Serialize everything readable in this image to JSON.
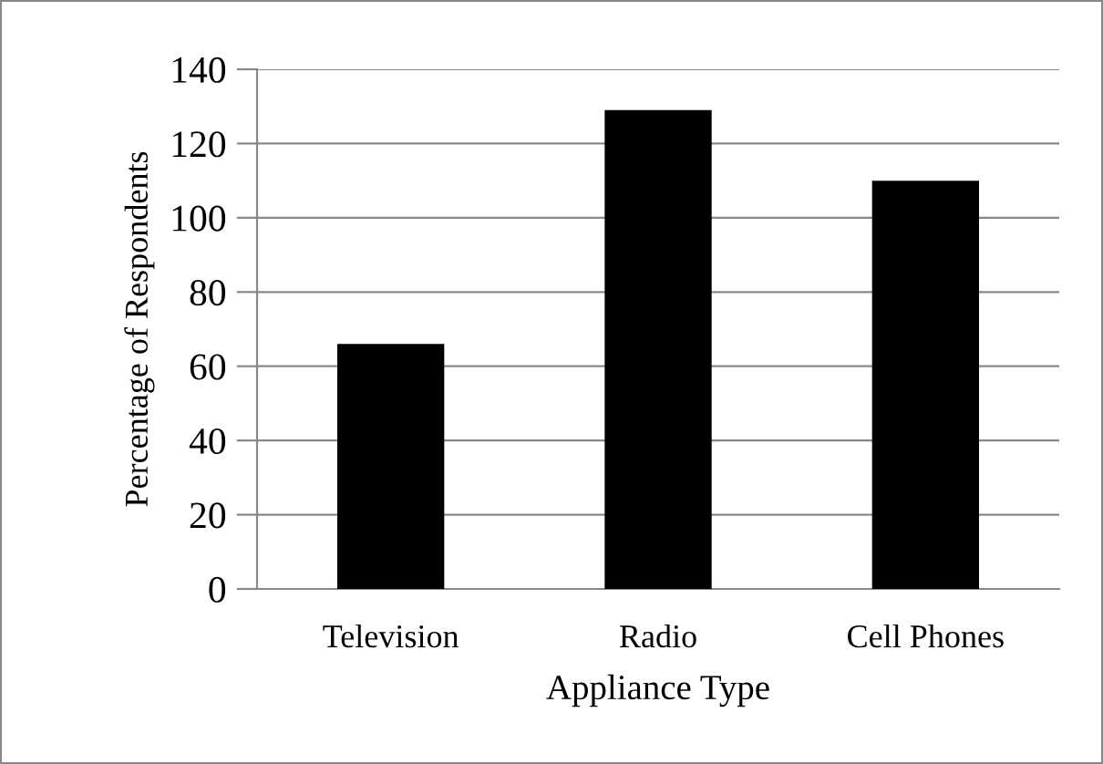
{
  "chart_data": {
    "type": "bar",
    "xlabel": "Appliance Type",
    "ylabel": "Percentage of Respondents",
    "categories": [
      "Television",
      "Radio",
      "Cell Phones"
    ],
    "values": [
      66,
      129,
      110
    ],
    "color": "#000000",
    "ylim": [
      0,
      140
    ],
    "yticks": [
      0,
      20,
      40,
      60,
      80,
      100,
      120,
      140
    ],
    "grid": "y",
    "legend": false
  }
}
